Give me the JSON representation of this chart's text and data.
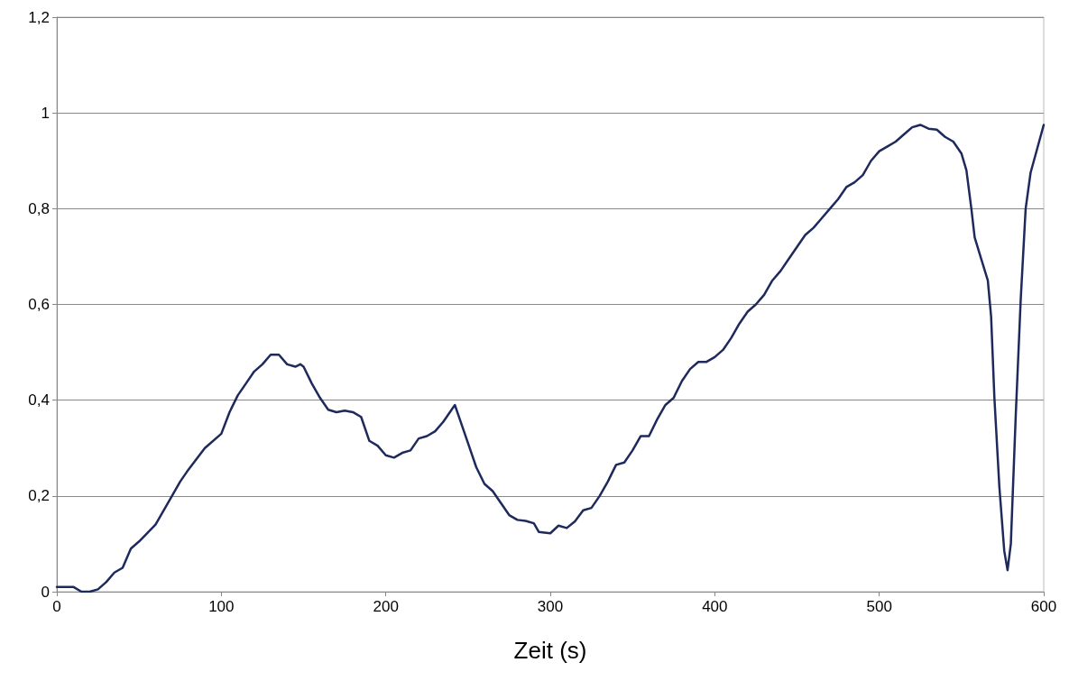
{
  "chart_data": {
    "type": "line",
    "xlabel": "Zeit (s)",
    "x": [
      0,
      5,
      10,
      15,
      20,
      25,
      30,
      35,
      40,
      45,
      50,
      60,
      70,
      75,
      80,
      90,
      100,
      105,
      110,
      115,
      120,
      125,
      130,
      135,
      140,
      145,
      148,
      150,
      155,
      160,
      165,
      170,
      175,
      180,
      185,
      190,
      195,
      200,
      205,
      210,
      215,
      220,
      225,
      230,
      235,
      240,
      242,
      245,
      250,
      255,
      260,
      265,
      270,
      275,
      280,
      285,
      290,
      293,
      300,
      305,
      310,
      315,
      320,
      325,
      330,
      335,
      340,
      345,
      350,
      355,
      360,
      365,
      370,
      375,
      380,
      385,
      390,
      395,
      400,
      405,
      410,
      415,
      420,
      425,
      430,
      435,
      440,
      445,
      450,
      455,
      460,
      465,
      470,
      475,
      480,
      485,
      490,
      495,
      500,
      505,
      510,
      515,
      520,
      525,
      530,
      535,
      540,
      545,
      550,
      553,
      556,
      558,
      562,
      566,
      568,
      570,
      573,
      576,
      578,
      580,
      583,
      586,
      589,
      592,
      596,
      600
    ],
    "series": [
      {
        "color": "#1f2a5c",
        "values": [
          0.01,
          0.01,
          0.01,
          0,
          0,
          0.005,
          0.02,
          0.04,
          0.05,
          0.09,
          0.105,
          0.14,
          0.2,
          0.23,
          0.255,
          0.3,
          0.33,
          0.375,
          0.41,
          0.435,
          0.46,
          0.475,
          0.495,
          0.495,
          0.475,
          0.47,
          0.475,
          0.47,
          0.435,
          0.405,
          0.38,
          0.375,
          0.378,
          0.375,
          0.365,
          0.315,
          0.305,
          0.285,
          0.28,
          0.29,
          0.295,
          0.32,
          0.325,
          0.335,
          0.355,
          0.38,
          0.39,
          0.36,
          0.31,
          0.26,
          0.225,
          0.21,
          0.185,
          0.16,
          0.15,
          0.148,
          0.143,
          0.125,
          0.122,
          0.138,
          0.133,
          0.147,
          0.17,
          0.175,
          0.2,
          0.23,
          0.265,
          0.27,
          0.295,
          0.325,
          0.325,
          0.36,
          0.39,
          0.405,
          0.44,
          0.465,
          0.48,
          0.48,
          0.49,
          0.505,
          0.53,
          0.56,
          0.585,
          0.6,
          0.62,
          0.65,
          0.67,
          0.695,
          0.72,
          0.745,
          0.76,
          0.78,
          0.8,
          0.82,
          0.845,
          0.855,
          0.87,
          0.9,
          0.92,
          0.93,
          0.94,
          0.955,
          0.97,
          0.975,
          0.967,
          0.965,
          0.95,
          0.94,
          0.915,
          0.88,
          0.8,
          0.74,
          0.695,
          0.65,
          0.575,
          0.405,
          0.22,
          0.085,
          0.045,
          0.1,
          0.37,
          0.61,
          0.8,
          0.875,
          0.925,
          0.975
        ]
      }
    ],
    "xlim": [
      0,
      600
    ],
    "xticks": [
      0,
      100,
      200,
      300,
      400,
      500,
      600
    ],
    "ylim": [
      0,
      1.2
    ],
    "yticks": [
      0,
      {
        "value": 0.2,
        "label": "0,2"
      },
      {
        "value": 0.4,
        "label": "0,4"
      },
      {
        "value": 0.6,
        "label": "0,6"
      },
      {
        "value": 0.8,
        "label": "0,8"
      },
      1,
      {
        "value": 1.2,
        "label": "1,2"
      }
    ],
    "grid": "y",
    "marker": "none",
    "line_style": "solid"
  }
}
